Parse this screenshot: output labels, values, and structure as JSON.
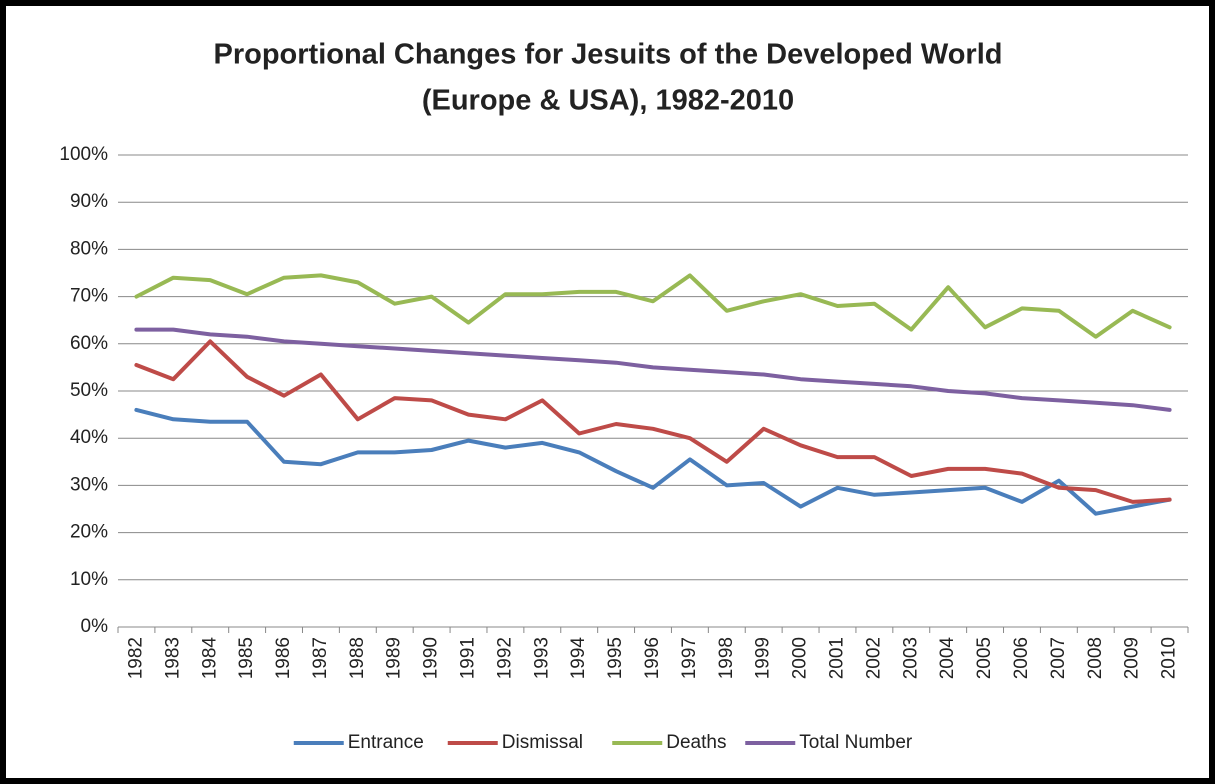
{
  "chart_data": {
    "type": "line",
    "title": [
      "Proportional Changes for Jesuits of the Developed World",
      "(Europe & USA), 1982-2010"
    ],
    "categories": [
      "1982",
      "1983",
      "1984",
      "1985",
      "1986",
      "1987",
      "1988",
      "1989",
      "1990",
      "1991",
      "1992",
      "1993",
      "1994",
      "1995",
      "1996",
      "1997",
      "1998",
      "1999",
      "2000",
      "2001",
      "2002",
      "2003",
      "2004",
      "2005",
      "2006",
      "2007",
      "2008",
      "2009",
      "2010"
    ],
    "series": [
      {
        "name": "Entrance",
        "color": "#4a7ebb",
        "values": [
          46,
          44,
          43.5,
          43.5,
          35,
          34.5,
          37,
          37,
          37.5,
          39.5,
          38,
          39,
          37,
          33,
          29.5,
          35.5,
          30,
          30.5,
          25.5,
          29.5,
          28,
          28.5,
          29,
          29.5,
          26.5,
          31,
          24,
          25.5,
          27
        ]
      },
      {
        "name": "Dismissal",
        "color": "#be4b48",
        "values": [
          55.5,
          52.5,
          60.5,
          53,
          49,
          53.5,
          44,
          48.5,
          48,
          45,
          44,
          48,
          41,
          43,
          42,
          40,
          35,
          42,
          38.5,
          36,
          36,
          32,
          33.5,
          33.5,
          32.5,
          29.5,
          29,
          26.5,
          27
        ]
      },
      {
        "name": "Deaths",
        "color": "#98b954",
        "values": [
          70,
          74,
          73.5,
          70.5,
          74,
          74.5,
          73,
          68.5,
          70,
          64.5,
          70.5,
          70.5,
          71,
          71,
          69,
          74.5,
          67,
          69,
          70.5,
          68,
          68.5,
          63,
          72,
          63.5,
          67.5,
          67,
          61.5,
          67,
          63.5
        ]
      },
      {
        "name": "Total Number",
        "color": "#7d60a0",
        "values": [
          63,
          63,
          62,
          61.5,
          60.5,
          60,
          59.5,
          59,
          58.5,
          58,
          57.5,
          57,
          56.5,
          56,
          55,
          54.5,
          54,
          53.5,
          52.5,
          52,
          51.5,
          51,
          50,
          49.5,
          48.5,
          48,
          47.5,
          47,
          46
        ]
      }
    ],
    "ylim": [
      0,
      100
    ],
    "yticks": [
      {
        "value": 0,
        "label": "0%"
      },
      {
        "value": 10,
        "label": "10%"
      },
      {
        "value": 20,
        "label": "20%"
      },
      {
        "value": 30,
        "label": "30%"
      },
      {
        "value": 40,
        "label": "40%"
      },
      {
        "value": 50,
        "label": "50%"
      },
      {
        "value": 60,
        "label": "60%"
      },
      {
        "value": 70,
        "label": "70%"
      },
      {
        "value": 80,
        "label": "80%"
      },
      {
        "value": 90,
        "label": "90%"
      },
      {
        "value": 100,
        "label": "100%"
      }
    ],
    "grid": true,
    "legend": "bottom"
  }
}
